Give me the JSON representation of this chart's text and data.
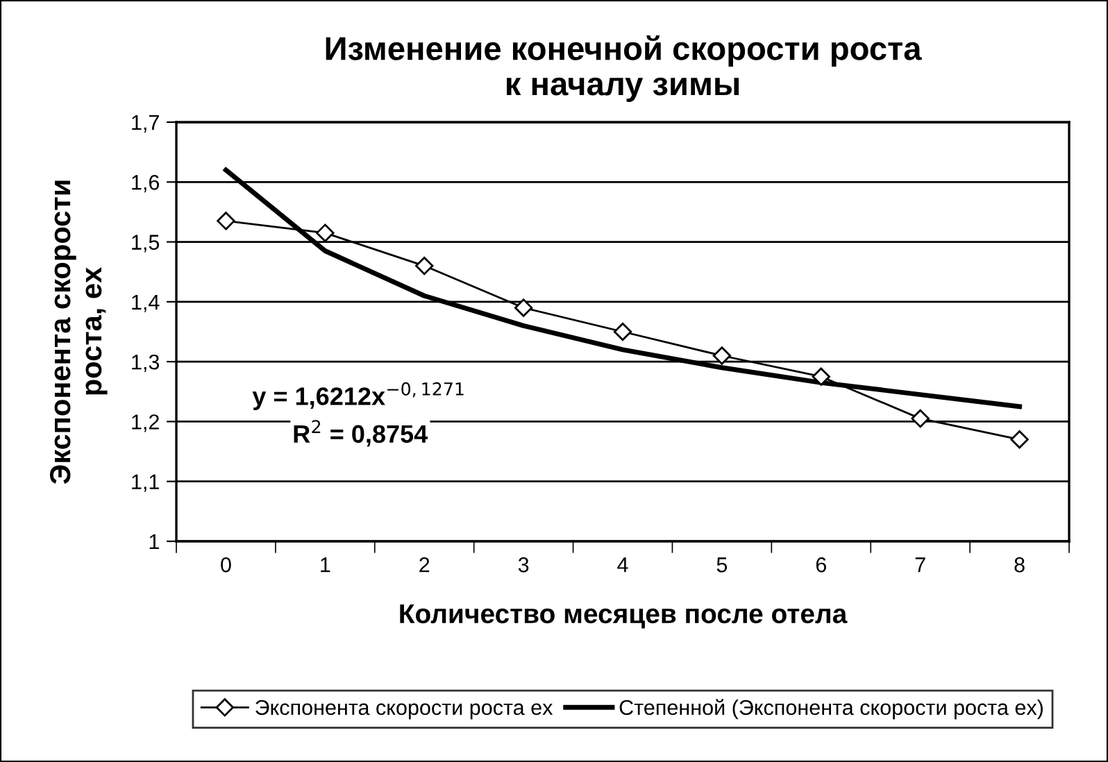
{
  "chart_data": {
    "type": "line",
    "title": "Изменение конечной скорости роста\nк началу зимы",
    "xlabel": "Количество месяцев после отела",
    "ylabel": "Экспонента скорости\nроста, ex",
    "categories": [
      "0",
      "1",
      "2",
      "3",
      "4",
      "5",
      "6",
      "7",
      "8"
    ],
    "series": [
      {
        "name": "Экспонента скорости роста ex",
        "color": "#000000",
        "marker": "diamond",
        "values": [
          1.535,
          1.515,
          1.46,
          1.39,
          1.35,
          1.31,
          1.275,
          1.205,
          1.17
        ]
      },
      {
        "name": "Степенной (Экспонента скорости роста ex)",
        "color": "#000000",
        "marker": "none",
        "values": [
          1.62,
          1.485,
          1.41,
          1.36,
          1.32,
          1.29,
          1.265,
          1.245,
          1.225
        ]
      }
    ],
    "ylim": [
      1,
      1.7
    ],
    "yticks": [
      {
        "value": 1,
        "label": "1"
      },
      {
        "value": 1.1,
        "label": "1,1"
      },
      {
        "value": 1.2,
        "label": "1,2"
      },
      {
        "value": 1.3,
        "label": "1,3"
      },
      {
        "value": 1.4,
        "label": "1,4"
      },
      {
        "value": 1.5,
        "label": "1,5"
      },
      {
        "value": 1.6,
        "label": "1,6"
      },
      {
        "value": 1.7,
        "label": "1,7"
      }
    ],
    "grid": "y",
    "legend": "bottom",
    "annotations": [
      "y = 1,6212x$^{−0,1271}$",
      "R$^{2}$ = 0,8754"
    ]
  }
}
